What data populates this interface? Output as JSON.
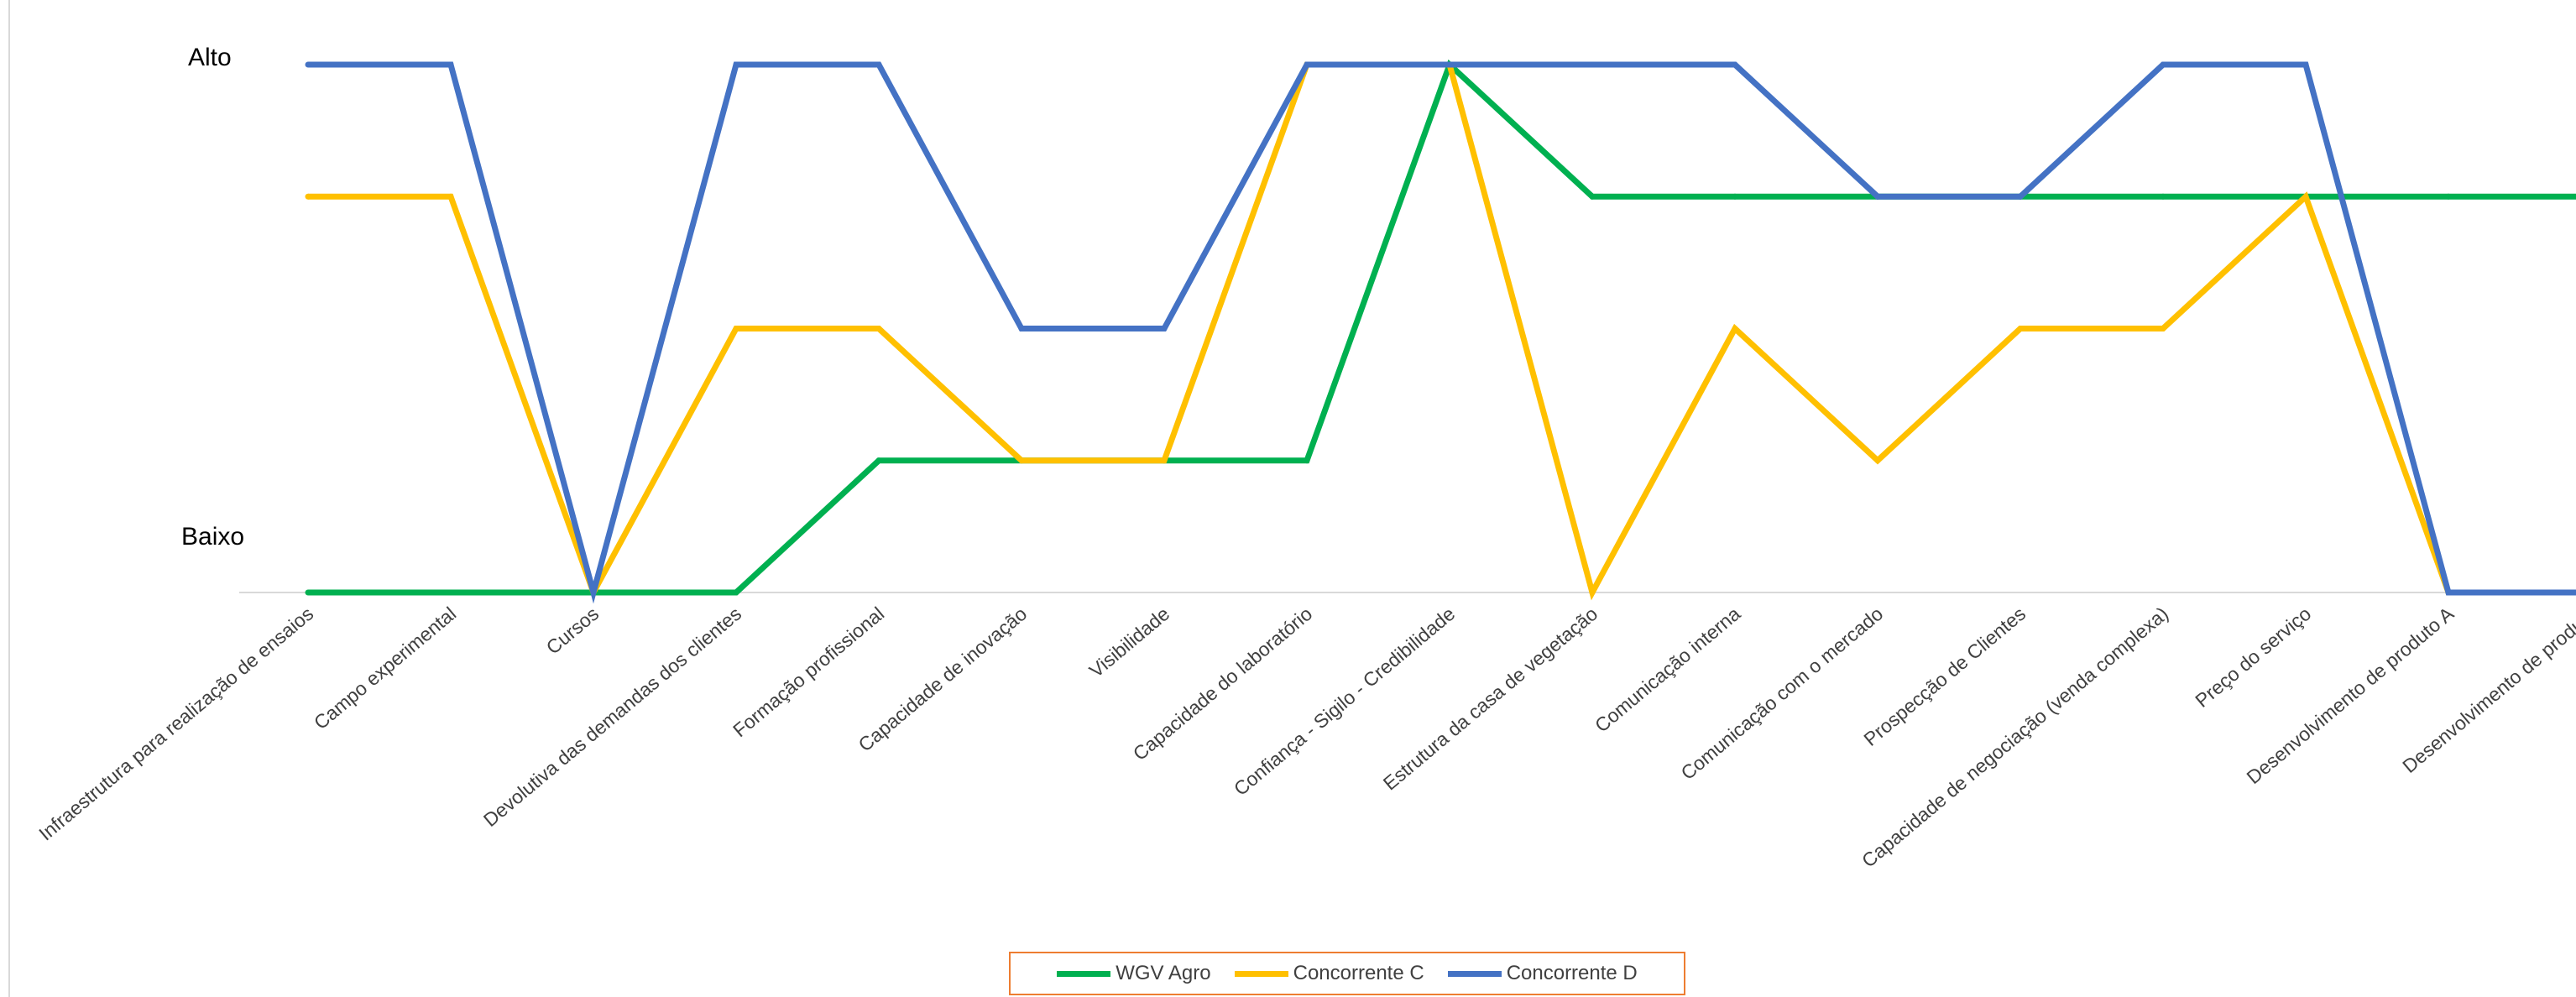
{
  "chart_data": {
    "type": "line",
    "title": "",
    "xlabel": "",
    "ylabel": "",
    "ylim": [
      0,
      4
    ],
    "y_tick_labels": [
      {
        "value": 4,
        "label": "Alto"
      },
      {
        "value": 0,
        "label": "Baixo"
      }
    ],
    "grid": false,
    "legend_position": "bottom",
    "categories": [
      "Infraestrutura para realização de ensaios",
      "Campo experimental",
      "Cursos",
      "Devolutiva das demandas dos clientes",
      "Formação profissional",
      "Capacidade de inovação",
      "Visibilidade",
      "Capacidade do laboratório",
      "Confiança - Sigilo - Credibilidade",
      "Estrutura da casa de vegetação",
      "Comunicação interna",
      "Comunicação com o mercado",
      "Prospecção de Clientes",
      "Capacidade de negociação (venda complexa)",
      "Preço do serviço",
      "Desenvolvimento de produto A",
      "Desenvolvimento de produto"
    ],
    "series": [
      {
        "name": "WGV Agro",
        "color": "#00b050",
        "values": [
          0,
          0,
          0,
          0,
          1,
          1,
          1,
          1,
          4,
          3,
          3,
          3,
          3,
          3,
          3,
          3,
          3
        ]
      },
      {
        "name": "Concorrente C",
        "color": "#ffc000",
        "values": [
          3,
          3,
          0,
          2,
          2,
          1,
          1,
          4,
          4,
          0,
          2,
          1,
          2,
          2,
          3,
          0,
          0
        ]
      },
      {
        "name": "Concorrente D",
        "color": "#4472c4",
        "values": [
          4,
          4,
          0,
          4,
          4,
          2,
          2,
          4,
          4,
          4,
          4,
          3,
          3,
          4,
          4,
          0,
          0
        ]
      }
    ]
  }
}
